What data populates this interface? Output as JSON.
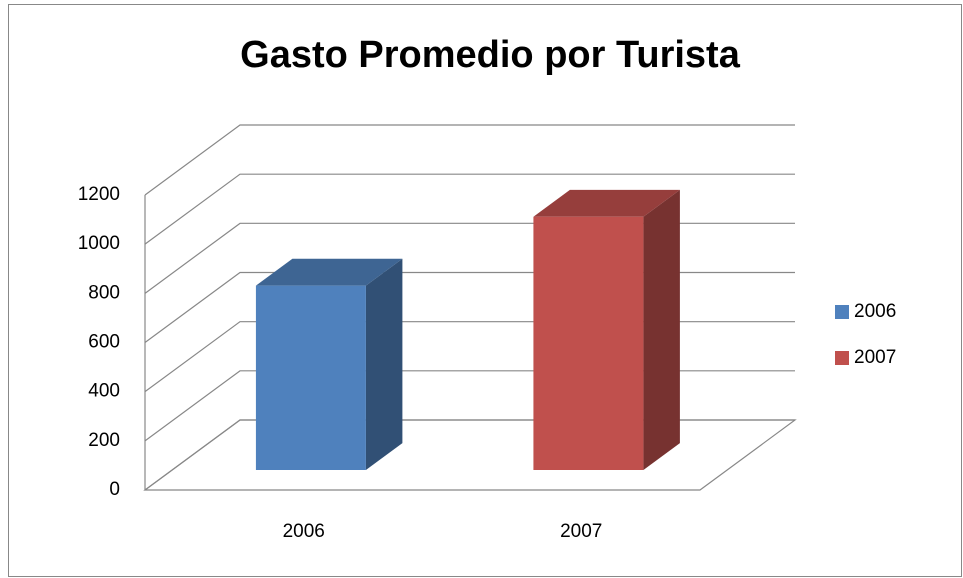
{
  "chart_data": {
    "type": "bar3d",
    "title": "Gasto Promedio por Turista",
    "categories": [
      "2006",
      "2007"
    ],
    "series": [
      {
        "name": "2006",
        "color": "#4f81bd",
        "values": [
          750,
          null
        ]
      },
      {
        "name": "2007",
        "color": "#c0504d",
        "values": [
          null,
          1030
        ]
      }
    ],
    "ylim": [
      0,
      1200
    ],
    "yticks": [
      0,
      200,
      400,
      600,
      800,
      1000,
      1200
    ],
    "grid": true,
    "legend": "right"
  }
}
